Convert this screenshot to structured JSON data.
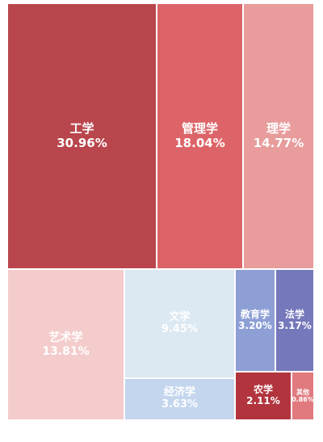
{
  "chart_data": {
    "type": "treemap",
    "unit": "%",
    "cells": [
      {
        "id": "gongxue",
        "label": "工学",
        "value": 30.96,
        "display": "30.96%",
        "color": "#b8464c"
      },
      {
        "id": "guanlixue",
        "label": "管理学",
        "value": 18.04,
        "display": "18.04%",
        "color": "#dc6468"
      },
      {
        "id": "lixue",
        "label": "理学",
        "value": 14.77,
        "display": "14.77%",
        "color": "#e89c9c"
      },
      {
        "id": "yishuxue",
        "label": "艺术学",
        "value": 13.81,
        "display": "13.81%",
        "color": "#f4cccc"
      },
      {
        "id": "wenxue",
        "label": "文学",
        "value": 9.45,
        "display": "9.45%",
        "color": "#dce8f2"
      },
      {
        "id": "jingjixue",
        "label": "经济学",
        "value": 3.63,
        "display": "3.63%",
        "color": "#c4d6ee"
      },
      {
        "id": "jiaoyuxue",
        "label": "教育学",
        "value": 3.2,
        "display": "3.20%",
        "color": "#8e9fd6"
      },
      {
        "id": "faxue",
        "label": "法学",
        "value": 3.17,
        "display": "3.17%",
        "color": "#7678bc"
      },
      {
        "id": "nongxue",
        "label": "农学",
        "value": 2.11,
        "display": "2.11%",
        "color": "#b2353e"
      },
      {
        "id": "qita",
        "label": "其他",
        "value": 0.86,
        "display": "0.86%",
        "color": "#e07a7e"
      }
    ]
  }
}
